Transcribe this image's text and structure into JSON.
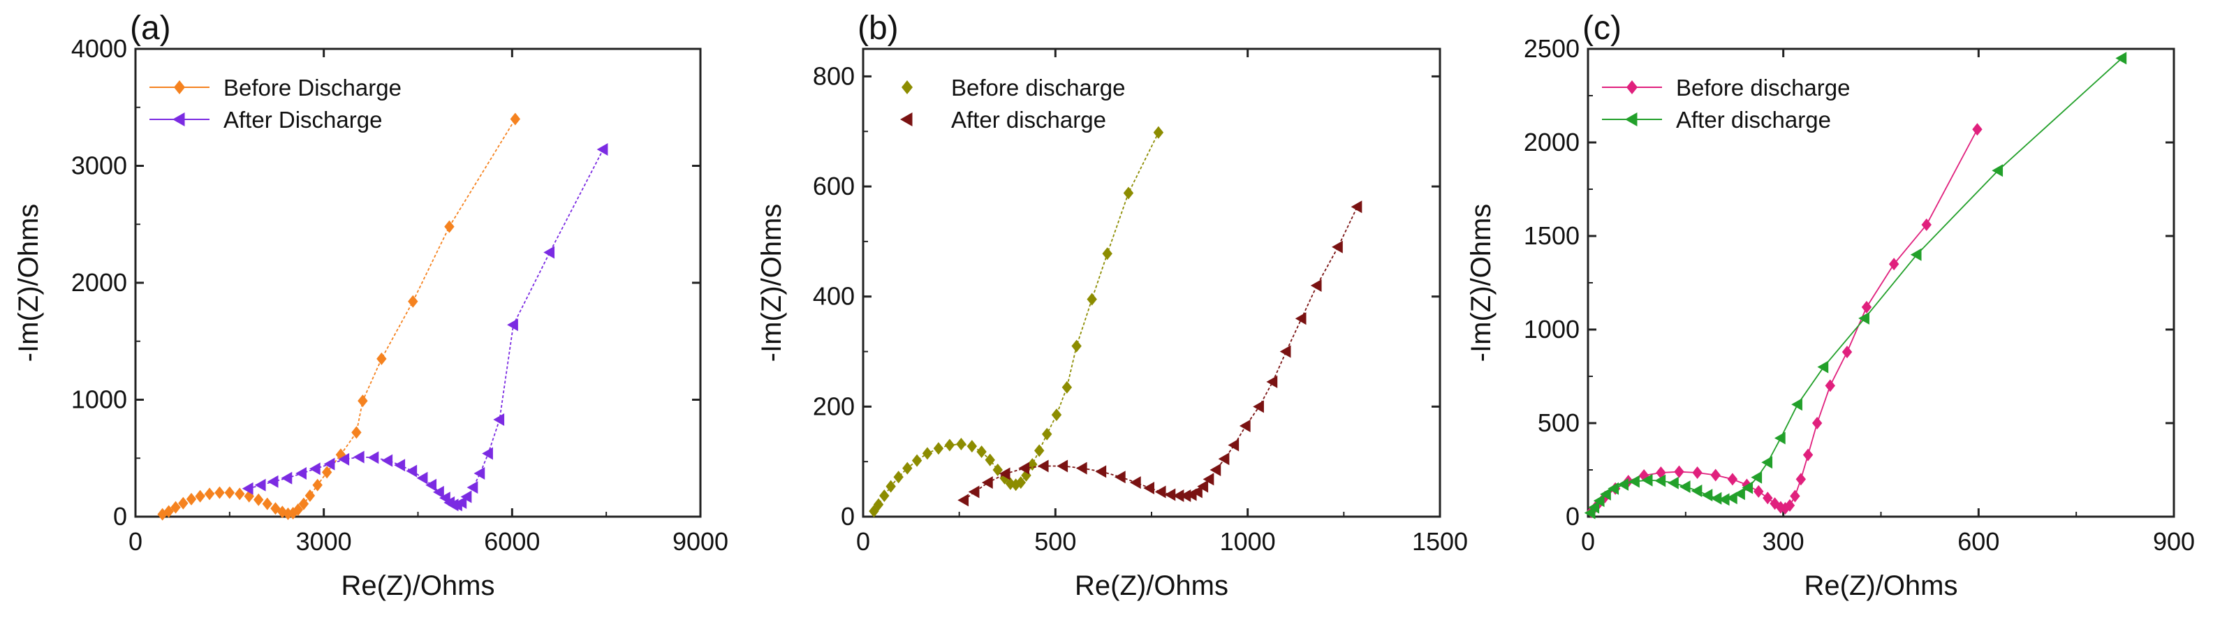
{
  "chart_data": [
    {
      "type": "scatter",
      "panel_label": "(a)",
      "xlabel": "Re(Z)/Ohms",
      "ylabel": "-Im(Z)/Ohms",
      "xlim": [
        0,
        9000
      ],
      "ylim": [
        0,
        4000
      ],
      "xticks": [
        0,
        3000,
        6000,
        9000
      ],
      "yticks": [
        0,
        1000,
        2000,
        3000,
        4000
      ],
      "xtick_labels": [
        "0",
        "3000",
        "6000",
        "9000"
      ],
      "ytick_labels": [
        "0",
        "1000",
        "2000",
        "3000",
        "4000"
      ],
      "legend_position": "top-left",
      "series": [
        {
          "name": "Before Discharge",
          "color": "#F5821F",
          "marker": "diamond",
          "line": "dashed",
          "x": [
            430,
            530,
            640,
            760,
            890,
            1030,
            1180,
            1340,
            1500,
            1660,
            1810,
            1960,
            2100,
            2230,
            2340,
            2430,
            2510,
            2590,
            2680,
            2780,
            2900,
            3050,
            3270,
            3520,
            3620,
            3920,
            4420,
            5000,
            6050
          ],
          "y": [
            20,
            45,
            80,
            115,
            150,
            175,
            195,
            205,
            205,
            195,
            175,
            145,
            110,
            70,
            40,
            25,
            30,
            60,
            110,
            180,
            270,
            380,
            530,
            720,
            990,
            1350,
            1840,
            2480,
            3400
          ]
        },
        {
          "name": "After Discharge",
          "color": "#7B2BE2",
          "marker": "triangle-left",
          "line": "dashed",
          "x": [
            1800,
            2000,
            2200,
            2420,
            2650,
            2870,
            3100,
            3330,
            3570,
            3800,
            4020,
            4220,
            4410,
            4580,
            4720,
            4840,
            4940,
            5010,
            5070,
            5130,
            5200,
            5280,
            5380,
            5490,
            5620,
            5800,
            6020,
            6600,
            7450
          ],
          "y": [
            240,
            270,
            300,
            330,
            370,
            410,
            450,
            490,
            510,
            505,
            480,
            440,
            390,
            330,
            270,
            210,
            160,
            120,
            100,
            100,
            120,
            170,
            250,
            370,
            540,
            830,
            1640,
            2260,
            3140
          ]
        }
      ]
    },
    {
      "type": "scatter",
      "panel_label": "(b)",
      "xlabel": "Re(Z)/Ohms",
      "ylabel": "-Im(Z)/Ohms",
      "xlim": [
        0,
        1500
      ],
      "ylim": [
        0,
        850
      ],
      "xticks": [
        0,
        500,
        1000,
        1500
      ],
      "yticks": [
        0,
        200,
        400,
        600,
        800
      ],
      "xtick_labels": [
        "0",
        "500",
        "1000",
        "1500"
      ],
      "ytick_labels": [
        "0",
        "200",
        "400",
        "600",
        "800"
      ],
      "legend_position": "top-left",
      "series": [
        {
          "name": "Before discharge",
          "color": "#8C8C00",
          "marker": "diamond",
          "line": "dashed",
          "x": [
            28,
            40,
            55,
            72,
            92,
            115,
            140,
            167,
            196,
            225,
            255,
            283,
            308,
            330,
            350,
            368,
            383,
            397,
            410,
            424,
            440,
            458,
            478,
            503,
            530,
            555,
            595,
            635,
            690,
            768
          ],
          "y": [
            10,
            22,
            38,
            55,
            72,
            88,
            102,
            115,
            124,
            130,
            132,
            128,
            118,
            103,
            85,
            70,
            60,
            58,
            62,
            75,
            95,
            120,
            150,
            185,
            235,
            310,
            395,
            478,
            588,
            698
          ]
        },
        {
          "name": "After discharge",
          "color": "#7A1212",
          "marker": "triangle-left",
          "line": "dashed",
          "x": [
            262,
            290,
            325,
            370,
            420,
            470,
            520,
            570,
            620,
            670,
            710,
            745,
            775,
            800,
            822,
            840,
            855,
            870,
            885,
            900,
            918,
            940,
            965,
            995,
            1030,
            1065,
            1100,
            1140,
            1180,
            1235,
            1285
          ],
          "y": [
            30,
            45,
            62,
            78,
            88,
            92,
            92,
            88,
            82,
            72,
            62,
            52,
            45,
            40,
            38,
            38,
            40,
            45,
            55,
            68,
            85,
            105,
            130,
            165,
            200,
            245,
            300,
            360,
            420,
            490,
            563
          ]
        }
      ]
    },
    {
      "type": "scatter",
      "panel_label": "(c)",
      "xlabel": "Re(Z)/Ohms",
      "ylabel": "-Im(Z)/Ohms",
      "xlim": [
        0,
        900
      ],
      "ylim": [
        0,
        2500
      ],
      "xticks": [
        0,
        300,
        600,
        900
      ],
      "yticks": [
        0,
        500,
        1000,
        1500,
        2000,
        2500
      ],
      "xtick_labels": [
        "0",
        "300",
        "600",
        "900"
      ],
      "ytick_labels": [
        "0",
        "500",
        "1000",
        "1500",
        "2000",
        "2500"
      ],
      "legend_position": "top-left",
      "series": [
        {
          "name": "Before discharge",
          "color": "#E0207D",
          "marker": "diamond",
          "line": "solid",
          "x": [
            5,
            14,
            26,
            42,
            62,
            86,
            112,
            140,
            168,
            196,
            222,
            244,
            262,
            276,
            287,
            296,
            303,
            310,
            318,
            327,
            338,
            352,
            372,
            398,
            428,
            470,
            520,
            598
          ],
          "y": [
            25,
            60,
            105,
            150,
            190,
            220,
            235,
            240,
            235,
            222,
            200,
            170,
            135,
            100,
            70,
            50,
            45,
            60,
            110,
            200,
            330,
            500,
            700,
            880,
            1120,
            1350,
            1560,
            2070
          ]
        },
        {
          "name": "After discharge",
          "color": "#22A02A",
          "marker": "triangle-left",
          "line": "solid",
          "x": [
            4,
            10,
            18,
            28,
            40,
            55,
            72,
            92,
            112,
            132,
            150,
            168,
            184,
            198,
            210,
            222,
            234,
            246,
            260,
            276,
            296,
            322,
            362,
            425,
            505,
            630,
            820
          ],
          "y": [
            20,
            50,
            85,
            120,
            150,
            172,
            188,
            195,
            192,
            180,
            160,
            138,
            115,
            98,
            92,
            100,
            122,
            155,
            210,
            290,
            420,
            600,
            800,
            1060,
            1400,
            1850,
            2450
          ]
        }
      ]
    }
  ]
}
